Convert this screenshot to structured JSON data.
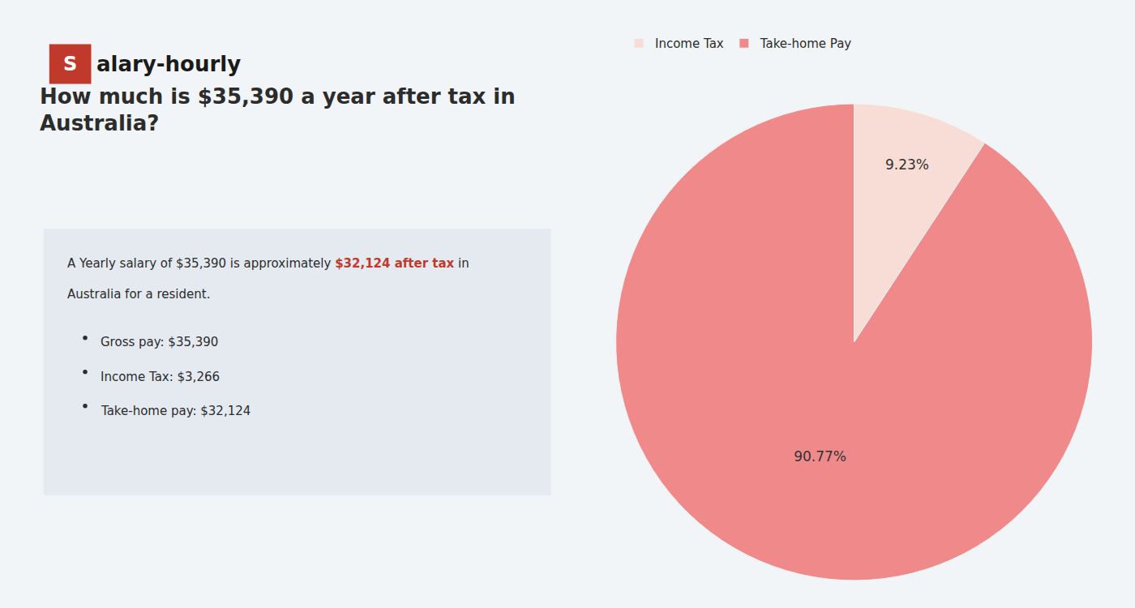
{
  "chart_data": {
    "type": "pie",
    "title": "How much is $35,390 a year after tax in\nAustralia?",
    "categories": [
      "Income Tax",
      "Take-home Pay"
    ],
    "values": [
      9.23,
      90.77
    ],
    "value_labels": [
      "9.23%",
      "90.77%"
    ],
    "data_labels": true,
    "colors": [
      "#f7ddd5",
      "#f08a8a"
    ],
    "legend": "top",
    "annotations": [
      "S",
      "alary-hourly",
      "A Yearly salary of $35,390 is approximately ",
      "$32,124 after tax",
      " in",
      "Australia for a resident.",
      "Gross pay: $35,390",
      "Income Tax: $3,266",
      "Take-home pay: $32,124"
    ]
  }
}
